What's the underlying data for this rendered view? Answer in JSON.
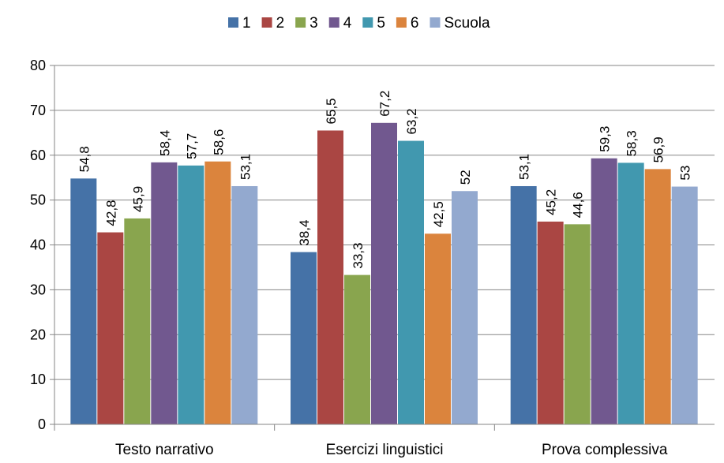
{
  "chart_data": {
    "type": "bar",
    "categories": [
      "Testo narrativo",
      "Esercizi linguistici",
      "Prova complessiva"
    ],
    "series": [
      {
        "name": "1",
        "color": "#4572A7",
        "values": [
          54.8,
          38.4,
          53.1
        ],
        "labels": [
          "54,8",
          "38,4",
          "53,1"
        ]
      },
      {
        "name": "2",
        "color": "#AA4643",
        "values": [
          42.8,
          65.5,
          45.2
        ],
        "labels": [
          "42,8",
          "65,5",
          "45,2"
        ]
      },
      {
        "name": "3",
        "color": "#89A54E",
        "values": [
          45.9,
          33.3,
          44.6
        ],
        "labels": [
          "45,9",
          "33,3",
          "44,6"
        ]
      },
      {
        "name": "4",
        "color": "#71588F",
        "values": [
          58.4,
          67.2,
          59.3
        ],
        "labels": [
          "58,4",
          "67,2",
          "59,3"
        ]
      },
      {
        "name": "5",
        "color": "#4198AF",
        "values": [
          57.7,
          63.2,
          58.3
        ],
        "labels": [
          "57,7",
          "63,2",
          "58,3"
        ]
      },
      {
        "name": "6",
        "color": "#DB843D",
        "values": [
          58.6,
          42.5,
          56.9
        ],
        "labels": [
          "58,6",
          "42,5",
          "56,9"
        ]
      },
      {
        "name": "Scuola",
        "color": "#93A9CF",
        "values": [
          53.1,
          52,
          53
        ],
        "labels": [
          "53,1",
          "52",
          "53"
        ]
      }
    ],
    "yticks": [
      "0",
      "10",
      "20",
      "30",
      "40",
      "50",
      "60",
      "70",
      "80"
    ],
    "ylim": [
      0,
      80
    ],
    "grid": true,
    "legend": "top-center",
    "title": "",
    "xlabel": "",
    "ylabel": ""
  }
}
